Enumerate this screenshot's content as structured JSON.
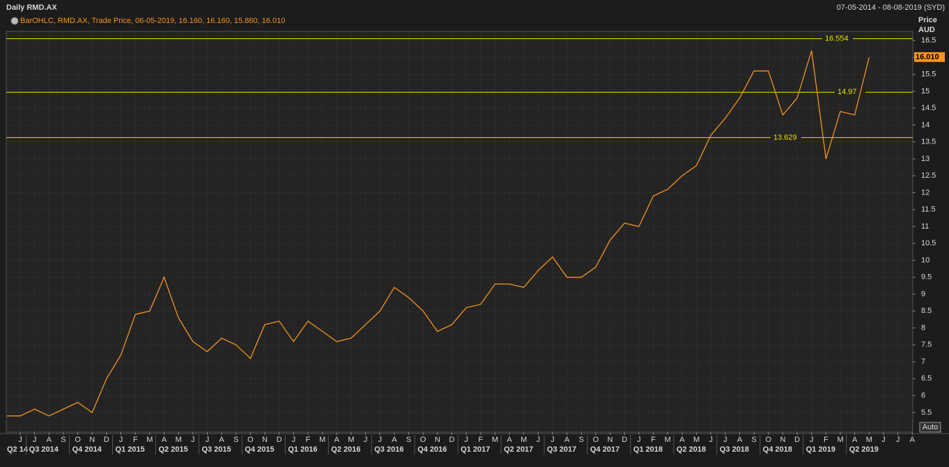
{
  "chart_data": {
    "type": "line",
    "title": "Daily RMD.AX",
    "date_range": "07-05-2014 - 08-08-2019 (SYD)",
    "legend_text": "BarOHLC, RMD.AX, Trade Price, 06-05-2019, 16.160, 16.160, 15.860, 16.010",
    "y_axis_label": "Price",
    "y_axis_unit": "AUD",
    "scale_button": "Auto",
    "categories": [
      null,
      "J",
      "J",
      "A",
      "S",
      "O",
      "N",
      "D",
      "J",
      "F",
      "M",
      "A",
      "M",
      "J",
      "J",
      "A",
      "S",
      "O",
      "N",
      "D",
      "J",
      "F",
      "M",
      "A",
      "M",
      "J",
      "J",
      "A",
      "S",
      "O",
      "N",
      "D",
      "J",
      "F",
      "M",
      "A",
      "M",
      "J",
      "J",
      "A",
      "S",
      "O",
      "N",
      "D",
      "J",
      "F",
      "M",
      "A",
      "M",
      "J",
      "J",
      "A",
      "S",
      "O",
      "N",
      "D",
      "J",
      "F",
      "M",
      "A",
      "M",
      "J",
      "J",
      "A"
    ],
    "quarters": [
      "Q2 14",
      "Q3 2014",
      "Q4 2014",
      "Q1 2015",
      "Q2 2015",
      "Q3 2015",
      "Q4 2015",
      "Q1 2016",
      "Q2 2016",
      "Q3 2016",
      "Q4 2016",
      "Q1 2017",
      "Q2 2017",
      "Q3 2017",
      "Q4 2017",
      "Q1 2018",
      "Q2 2018",
      "Q3 2018",
      "Q4 2018",
      "Q1 2019",
      "Q2 2019"
    ],
    "series": [
      {
        "name": "RMD.AX",
        "color": "#f7931e",
        "values": [
          5.4,
          5.4,
          5.6,
          5.4,
          5.6,
          5.8,
          5.5,
          6.5,
          7.2,
          8.4,
          8.5,
          9.5,
          8.3,
          7.6,
          7.3,
          7.7,
          7.5,
          7.1,
          8.1,
          8.2,
          7.6,
          8.2,
          7.9,
          7.6,
          7.7,
          8.1,
          8.5,
          9.2,
          8.9,
          8.5,
          7.9,
          8.1,
          8.6,
          8.7,
          9.3,
          9.3,
          9.2,
          9.7,
          10.1,
          9.5,
          9.5,
          9.8,
          10.6,
          11.1,
          11.0,
          11.9,
          12.1,
          12.5,
          12.8,
          13.7,
          14.2,
          14.8,
          15.6,
          15.6,
          14.3,
          14.8,
          16.2,
          13.0,
          14.4,
          14.3,
          16.0,
          null,
          null,
          null
        ]
      }
    ],
    "levels": [
      16.554,
      14.97,
      13.629
    ],
    "last_price": {
      "value": 16.01,
      "label": "16.010"
    },
    "ylim": [
      4.92,
      16.77
    ],
    "yticks": [
      5.5,
      6,
      6.5,
      7,
      7.5,
      8,
      8.5,
      9,
      9.5,
      10,
      10.5,
      11,
      11.5,
      12,
      12.5,
      13,
      13.5,
      14,
      14.5,
      15,
      15.5,
      16,
      16.5
    ],
    "grid": true
  }
}
